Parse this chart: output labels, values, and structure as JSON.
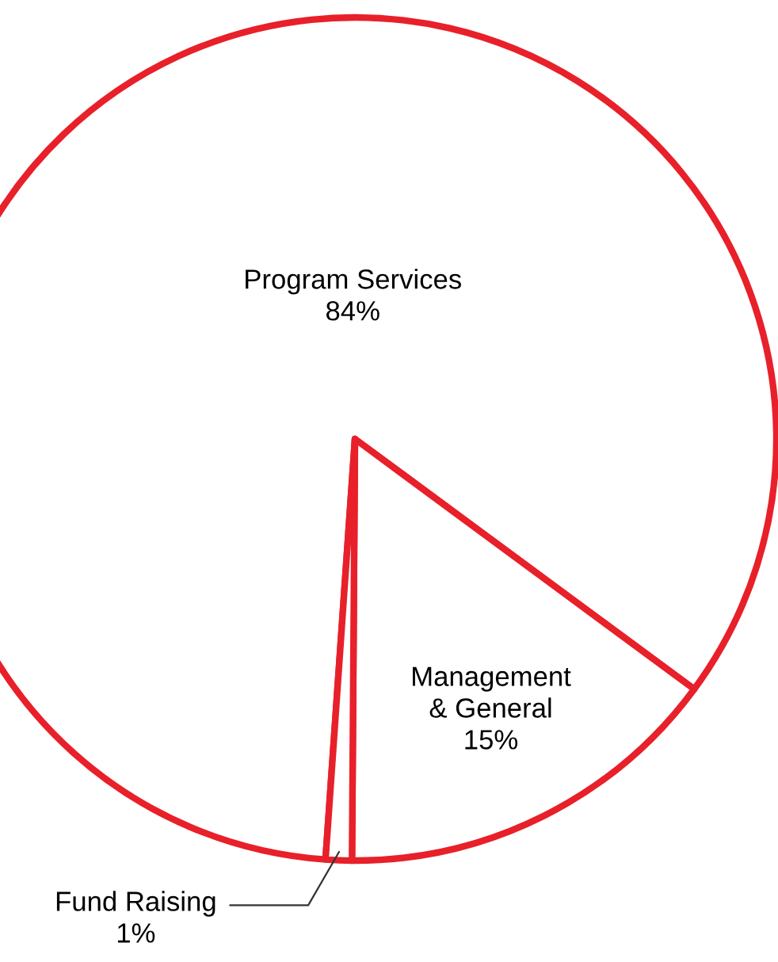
{
  "chart_data": {
    "type": "pie",
    "categories": [
      "Program Services",
      "Management & General",
      "Fund Raising"
    ],
    "values": [
      84,
      15,
      1
    ],
    "colors": [
      "#ffffff",
      "#ffffff",
      "#ffffff"
    ],
    "value_labels": [
      "84%",
      "15%",
      "1%"
    ],
    "legend": false
  }
}
